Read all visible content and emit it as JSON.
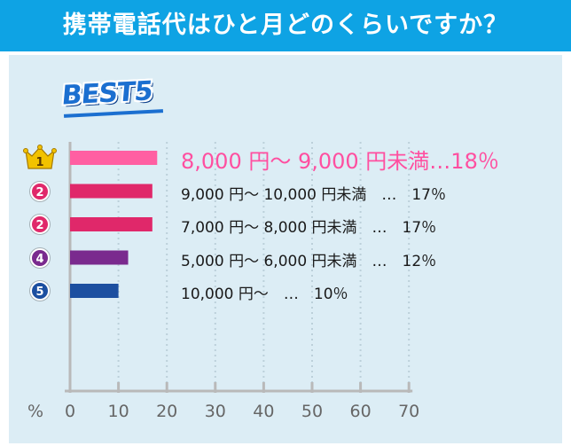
{
  "header": {
    "title": "携帯電話代はひと月どのくらいですか？"
  },
  "badge": {
    "text": "BEST5"
  },
  "axis": {
    "unit_label": "%",
    "ticks": [
      "0",
      "10",
      "20",
      "30",
      "40",
      "50",
      "60",
      "70"
    ]
  },
  "chart_data": {
    "type": "bar",
    "orientation": "horizontal",
    "title": "携帯電話代はひと月どのくらいですか？",
    "categories": [
      "8,000 円～ 9,000 円未満",
      "9,000 円～ 10,000 円未満",
      "7,000 円～ 8,000 円未満",
      "5,000 円～ 6,000 円未満",
      "10,000 円～"
    ],
    "values": [
      18,
      17,
      17,
      12,
      10
    ],
    "ranks": [
      "1",
      "2",
      "2",
      "4",
      "5"
    ],
    "labels": [
      "8,000 円～ 9,000 円未満…18％",
      "9,000 円～ 10,000 円未満　…　17％",
      "7,000 円～ 8,000 円未満　…　17％",
      "5,000 円～ 6,000 円未満　…　12％",
      "10,000 円～　…　10％"
    ],
    "colors": [
      "#ff5fa2",
      "#e0286a",
      "#e0286a",
      "#7a2a8e",
      "#1c4fa0"
    ],
    "medal_colors": [
      "#f2c200",
      "#e0286a",
      "#e0286a",
      "#7a2a8e",
      "#1c4fa0"
    ],
    "xlim": [
      0,
      70
    ],
    "xlabel": "%",
    "grid": true
  }
}
